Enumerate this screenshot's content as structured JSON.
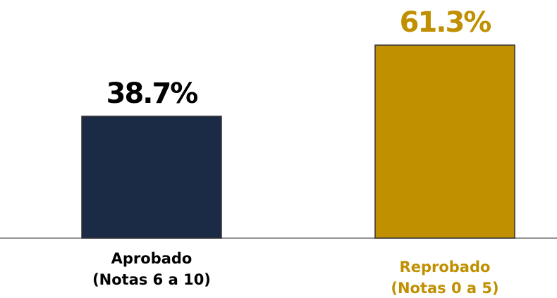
{
  "chart_data": {
    "type": "bar",
    "categories": [
      "Aprobado",
      "Reprobado"
    ],
    "category_notes": [
      "(Notas 6 a 10)",
      "(Notas 0 a 5)"
    ],
    "values": [
      38.7,
      61.3
    ],
    "value_labels": [
      "38.7%",
      "61.3%"
    ],
    "colors": [
      "#1b2b46",
      "#c09000"
    ],
    "label_colors": [
      "#000000",
      "#c09000"
    ],
    "ylim": [
      0,
      65
    ]
  }
}
